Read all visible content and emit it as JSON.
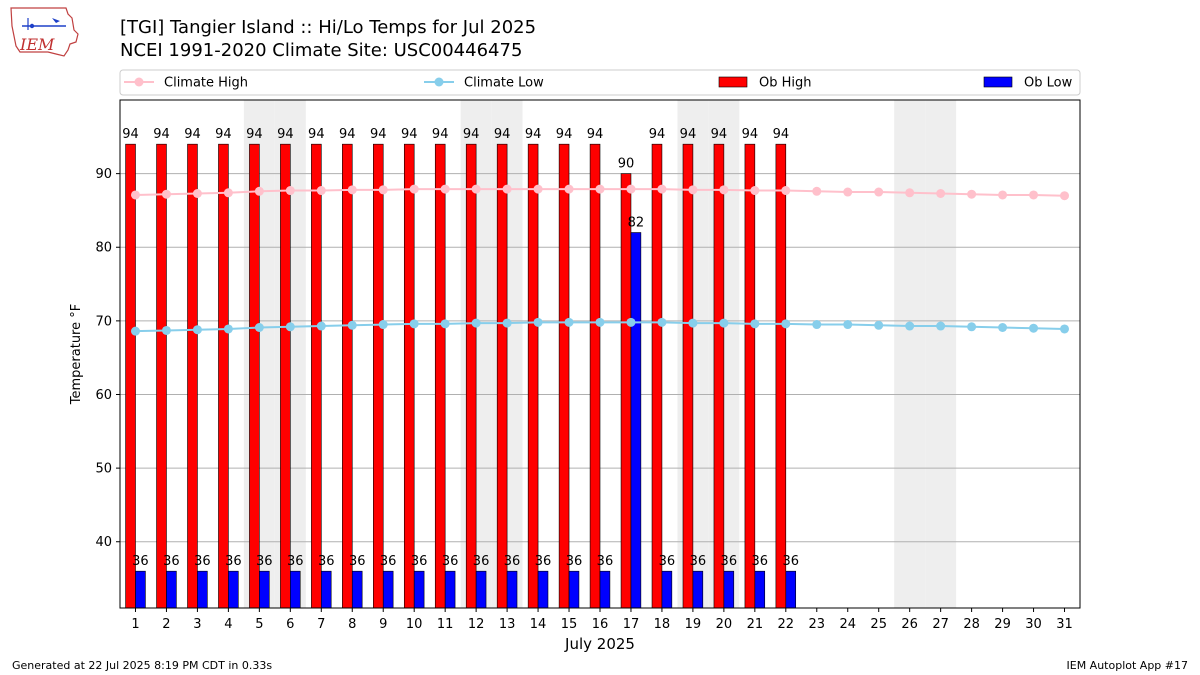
{
  "logo_text": "IEM",
  "footer": {
    "generated": "Generated at 22 Jul 2025 8:19 PM CDT in 0.33s",
    "app": "IEM Autoplot App #17"
  },
  "chart_data": {
    "type": "bar",
    "title": "[TGI] Tangier Island :: Hi/Lo Temps for Jul 2025",
    "subtitle": "NCEI 1991-2020 Climate Site: USC00446475",
    "xlabel": "July 2025",
    "ylabel": "Temperature °F",
    "ylim": [
      31,
      100
    ],
    "yticks": [
      40,
      50,
      60,
      70,
      80,
      90
    ],
    "grid": "horizontal",
    "legend_position": "top",
    "weekend_shading_days": [
      5,
      6,
      12,
      13,
      19,
      20,
      26,
      27
    ],
    "categories": [
      1,
      2,
      3,
      4,
      5,
      6,
      7,
      8,
      9,
      10,
      11,
      12,
      13,
      14,
      15,
      16,
      17,
      18,
      19,
      20,
      21,
      22,
      23,
      24,
      25,
      26,
      27,
      28,
      29,
      30,
      31
    ],
    "series": [
      {
        "name": "Climate High",
        "kind": "line",
        "color": "#ffc0cb",
        "values": [
          87.1,
          87.2,
          87.3,
          87.4,
          87.6,
          87.7,
          87.7,
          87.8,
          87.8,
          87.9,
          87.9,
          87.9,
          87.9,
          87.9,
          87.9,
          87.9,
          87.9,
          87.9,
          87.8,
          87.8,
          87.7,
          87.7,
          87.6,
          87.5,
          87.5,
          87.4,
          87.3,
          87.2,
          87.1,
          87.1,
          87.0
        ]
      },
      {
        "name": "Climate Low",
        "kind": "line",
        "color": "#87ceeb",
        "values": [
          68.6,
          68.7,
          68.8,
          68.9,
          69.1,
          69.2,
          69.3,
          69.4,
          69.5,
          69.6,
          69.6,
          69.7,
          69.7,
          69.8,
          69.8,
          69.8,
          69.8,
          69.8,
          69.7,
          69.7,
          69.6,
          69.6,
          69.5,
          69.5,
          69.4,
          69.3,
          69.3,
          69.2,
          69.1,
          69.0,
          68.9
        ]
      },
      {
        "name": "Ob High",
        "kind": "bar",
        "color": "#ff0000",
        "values": [
          94,
          94,
          94,
          94,
          94,
          94,
          94,
          94,
          94,
          94,
          94,
          94,
          94,
          94,
          94,
          94,
          90,
          94,
          94,
          94,
          94,
          94,
          null,
          null,
          null,
          null,
          null,
          null,
          null,
          null,
          null
        ]
      },
      {
        "name": "Ob Low",
        "kind": "bar",
        "color": "#0000ff",
        "values": [
          36,
          36,
          36,
          36,
          36,
          36,
          36,
          36,
          36,
          36,
          36,
          36,
          36,
          36,
          36,
          36,
          82,
          36,
          36,
          36,
          36,
          36,
          null,
          null,
          null,
          null,
          null,
          null,
          null,
          null,
          null
        ]
      }
    ]
  }
}
